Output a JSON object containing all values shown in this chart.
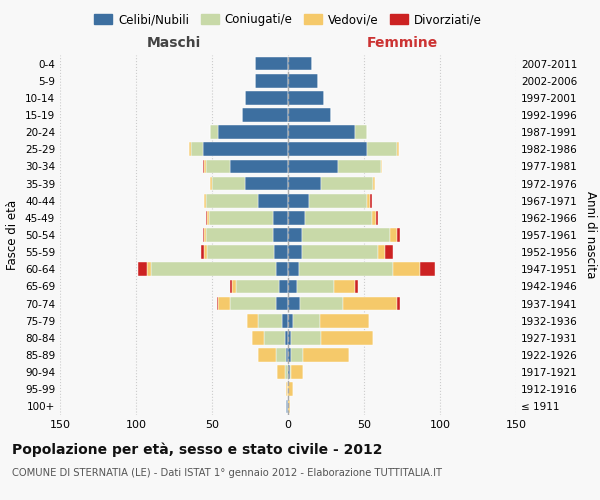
{
  "age_groups": [
    "100+",
    "95-99",
    "90-94",
    "85-89",
    "80-84",
    "75-79",
    "70-74",
    "65-69",
    "60-64",
    "55-59",
    "50-54",
    "45-49",
    "40-44",
    "35-39",
    "30-34",
    "25-29",
    "20-24",
    "15-19",
    "10-14",
    "5-9",
    "0-4"
  ],
  "birth_years": [
    "≤ 1911",
    "1912-1916",
    "1917-1921",
    "1922-1926",
    "1927-1931",
    "1932-1936",
    "1937-1941",
    "1942-1946",
    "1947-1951",
    "1952-1956",
    "1957-1961",
    "1962-1966",
    "1967-1971",
    "1972-1976",
    "1977-1981",
    "1982-1986",
    "1987-1991",
    "1992-1996",
    "1997-2001",
    "2002-2006",
    "2007-2011"
  ],
  "colors": {
    "celibe": "#3d6fa0",
    "coniugato": "#c8d9a8",
    "vedovo": "#f5c96a",
    "divorziato": "#cc2222"
  },
  "maschi": {
    "celibe": [
      1,
      0,
      0,
      1,
      2,
      4,
      8,
      6,
      8,
      9,
      10,
      10,
      20,
      28,
      38,
      56,
      46,
      30,
      28,
      22,
      22
    ],
    "coniugato": [
      0,
      0,
      2,
      7,
      14,
      16,
      30,
      28,
      82,
      44,
      44,
      42,
      34,
      22,
      16,
      8,
      5,
      0,
      0,
      0,
      0
    ],
    "vedovo": [
      0,
      1,
      5,
      12,
      8,
      7,
      8,
      3,
      3,
      2,
      1,
      1,
      1,
      1,
      1,
      1,
      0,
      0,
      0,
      0,
      0
    ],
    "divorziato": [
      0,
      0,
      0,
      0,
      0,
      0,
      1,
      1,
      6,
      2,
      1,
      1,
      0,
      0,
      1,
      0,
      0,
      0,
      0,
      0,
      0
    ]
  },
  "femmine": {
    "celibe": [
      0,
      0,
      1,
      2,
      2,
      3,
      8,
      6,
      7,
      9,
      9,
      11,
      14,
      22,
      33,
      52,
      44,
      28,
      24,
      20,
      16
    ],
    "coniugato": [
      0,
      0,
      1,
      8,
      20,
      18,
      28,
      24,
      62,
      50,
      58,
      44,
      38,
      34,
      28,
      20,
      8,
      0,
      0,
      0,
      0
    ],
    "vedovo": [
      1,
      3,
      8,
      30,
      34,
      32,
      36,
      14,
      18,
      5,
      5,
      3,
      2,
      1,
      1,
      1,
      0,
      0,
      0,
      0,
      0
    ],
    "divorziato": [
      0,
      0,
      0,
      0,
      0,
      0,
      2,
      2,
      10,
      5,
      2,
      1,
      1,
      0,
      0,
      0,
      0,
      0,
      0,
      0,
      0
    ]
  },
  "title": "Popolazione per età, sesso e stato civile - 2012",
  "subtitle": "COMUNE DI STERNATIA (LE) - Dati ISTAT 1° gennaio 2012 - Elaborazione TUTTITALIA.IT",
  "xlabel_left": "Maschi",
  "xlabel_right": "Femmine",
  "ylabel_left": "Fasce di età",
  "ylabel_right": "Anni di nascita",
  "xlim": 150,
  "bg_color": "#f8f8f8",
  "grid_color": "#cccccc",
  "legend_labels": [
    "Celibi/Nubili",
    "Coniugati/e",
    "Vedovi/e",
    "Divorziati/e"
  ]
}
